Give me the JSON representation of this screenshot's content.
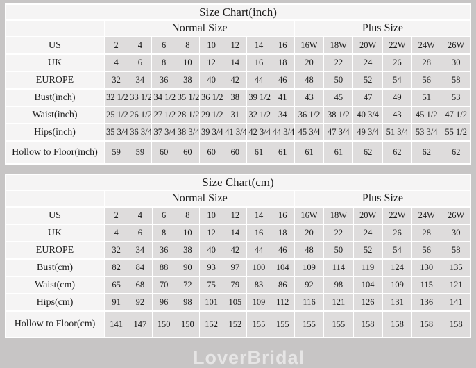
{
  "watermark": "LoverBridal",
  "colors": {
    "page_background": "#c7c5c5",
    "header_cell_background": "#f5f4f4",
    "data_cell_background": "#dedcdc",
    "grid_line": "#ffffff",
    "outer_border": "#a5a3a3",
    "text": "#1c1c1c"
  },
  "chart_data": [
    {
      "type": "table",
      "title": "Size Chart(inch)",
      "column_groups": [
        {
          "label": "",
          "span": 1
        },
        {
          "label": "Normal Size",
          "span": 8
        },
        {
          "label": "Plus Size",
          "span": 6
        }
      ],
      "rows": [
        {
          "label": "US",
          "values": [
            "2",
            "4",
            "6",
            "8",
            "10",
            "12",
            "14",
            "16",
            "16W",
            "18W",
            "20W",
            "22W",
            "24W",
            "26W"
          ]
        },
        {
          "label": "UK",
          "values": [
            "4",
            "6",
            "8",
            "10",
            "12",
            "14",
            "16",
            "18",
            "20",
            "22",
            "24",
            "26",
            "28",
            "30"
          ]
        },
        {
          "label": "EUROPE",
          "values": [
            "32",
            "34",
            "36",
            "38",
            "40",
            "42",
            "44",
            "46",
            "48",
            "50",
            "52",
            "54",
            "56",
            "58"
          ]
        },
        {
          "label": "Bust(inch)",
          "values": [
            "32 1/2",
            "33 1/2",
            "34 1/2",
            "35 1/2",
            "36 1/2",
            "38",
            "39 1/2",
            "41",
            "43",
            "45",
            "47",
            "49",
            "51",
            "53"
          ]
        },
        {
          "label": "Waist(inch)",
          "values": [
            "25 1/2",
            "26 1/2",
            "27 1/2",
            "28 1/2",
            "29 1/2",
            "31",
            "32 1/2",
            "34",
            "36 1/2",
            "38 1/2",
            "40 3/4",
            "43",
            "45 1/2",
            "47 1/2"
          ]
        },
        {
          "label": "Hips(inch)",
          "values": [
            "35 3/4",
            "36 3/4",
            "37 3/4",
            "38 3/4",
            "39 3/4",
            "41 3/4",
            "42 3/4",
            "44 3/4",
            "45 3/4",
            "47 3/4",
            "49 3/4",
            "51 3/4",
            "53 3/4",
            "55 1/2"
          ]
        },
        {
          "label": "Hollow to Floor(inch)",
          "values": [
            "59",
            "59",
            "60",
            "60",
            "60",
            "60",
            "61",
            "61",
            "61",
            "61",
            "62",
            "62",
            "62",
            "62"
          ]
        }
      ]
    },
    {
      "type": "table",
      "title": "Size Chart(cm)",
      "column_groups": [
        {
          "label": "",
          "span": 1
        },
        {
          "label": "Normal Size",
          "span": 8
        },
        {
          "label": "Plus Size",
          "span": 6
        }
      ],
      "rows": [
        {
          "label": "US",
          "values": [
            "2",
            "4",
            "6",
            "8",
            "10",
            "12",
            "14",
            "16",
            "16W",
            "18W",
            "20W",
            "22W",
            "24W",
            "26W"
          ]
        },
        {
          "label": "UK",
          "values": [
            "4",
            "6",
            "8",
            "10",
            "12",
            "14",
            "16",
            "18",
            "20",
            "22",
            "24",
            "26",
            "28",
            "30"
          ]
        },
        {
          "label": "EUROPE",
          "values": [
            "32",
            "34",
            "36",
            "38",
            "40",
            "42",
            "44",
            "46",
            "48",
            "50",
            "52",
            "54",
            "56",
            "58"
          ]
        },
        {
          "label": "Bust(cm)",
          "values": [
            "82",
            "84",
            "88",
            "90",
            "93",
            "97",
            "100",
            "104",
            "109",
            "114",
            "119",
            "124",
            "130",
            "135"
          ]
        },
        {
          "label": "Waist(cm)",
          "values": [
            "65",
            "68",
            "70",
            "72",
            "75",
            "79",
            "83",
            "86",
            "92",
            "98",
            "104",
            "109",
            "115",
            "121"
          ]
        },
        {
          "label": "Hips(cm)",
          "values": [
            "91",
            "92",
            "96",
            "98",
            "101",
            "105",
            "109",
            "112",
            "116",
            "121",
            "126",
            "131",
            "136",
            "141"
          ]
        },
        {
          "label": "Hollow to Floor(cm)",
          "values": [
            "141",
            "147",
            "150",
            "150",
            "152",
            "152",
            "155",
            "155",
            "155",
            "155",
            "158",
            "158",
            "158",
            "158"
          ]
        }
      ]
    }
  ]
}
